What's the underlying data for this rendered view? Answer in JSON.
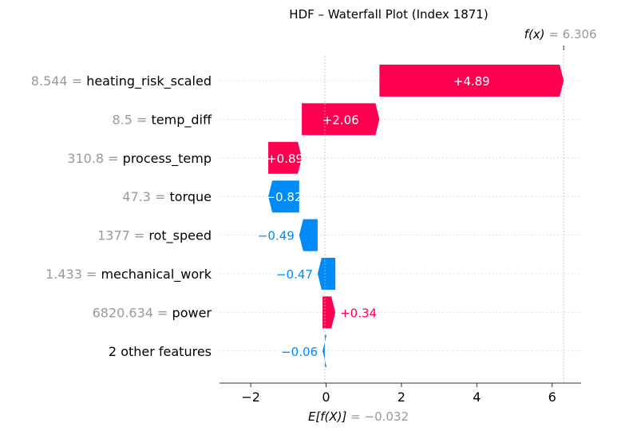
{
  "chart_data": {
    "type": "waterfall",
    "title": "HDF – Waterfall Plot (Index 1871)",
    "fx_label": "f(x)",
    "fx_value": "6.306",
    "fx": 6.306,
    "ex_label": "E[f(X)]",
    "ex_value": "−0.032",
    "ex": -0.032,
    "xlim": [
      -2.8,
      6.8
    ],
    "xticks": [
      {
        "value": -2,
        "label": "−2"
      },
      {
        "value": 0,
        "label": "0"
      },
      {
        "value": 2,
        "label": "2"
      },
      {
        "value": 4,
        "label": "4"
      },
      {
        "value": 6,
        "label": "6"
      }
    ],
    "colors": {
      "positive": "#ff0051",
      "negative": "#008bfb",
      "muted": "#999999"
    },
    "features": [
      {
        "value_text": "8.544",
        "name": "heating_risk_scaled",
        "start": 1.416,
        "end": 6.306,
        "label": "+4.89"
      },
      {
        "value_text": "8.5",
        "name": "temp_diff",
        "start": -0.644,
        "end": 1.416,
        "label": "+2.06"
      },
      {
        "value_text": "310.8",
        "name": "process_temp",
        "start": -1.534,
        "end": -0.644,
        "label": "+0.89"
      },
      {
        "value_text": "47.3",
        "name": "torque",
        "start": -0.714,
        "end": -1.534,
        "label": "−0.82"
      },
      {
        "value_text": "1377",
        "name": "rot_speed",
        "start": -0.224,
        "end": -0.714,
        "label": "−0.49"
      },
      {
        "value_text": "1.433",
        "name": "mechanical_work",
        "start": 0.246,
        "end": -0.224,
        "label": "−0.47"
      },
      {
        "value_text": "6820.634",
        "name": "power",
        "start": -0.094,
        "end": 0.246,
        "label": "+0.34"
      },
      {
        "value_text": "",
        "name": "2 other features",
        "start": -0.034,
        "end": -0.094,
        "label": "−0.06"
      }
    ]
  }
}
